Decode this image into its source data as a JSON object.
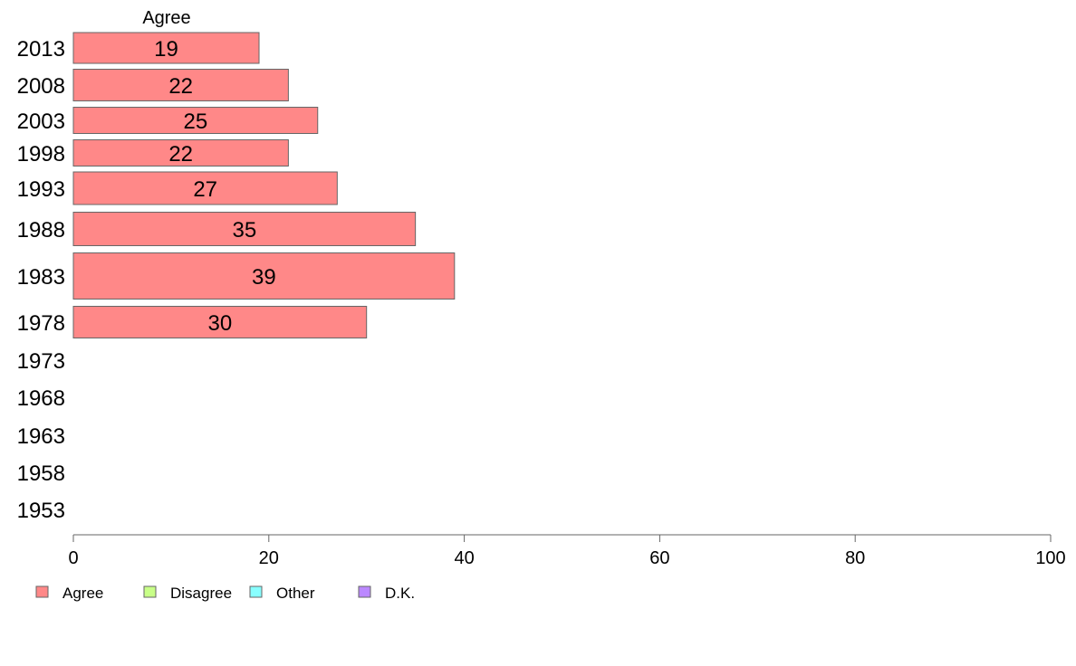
{
  "chart_data": {
    "type": "bar",
    "orientation": "horizontal",
    "series_header": "Agree",
    "categories": [
      "2013",
      "2008",
      "2003",
      "1998",
      "1993",
      "1988",
      "1983",
      "1978",
      "1973",
      "1968",
      "1963",
      "1958",
      "1953"
    ],
    "series": [
      {
        "name": "Agree",
        "color": "#ff8888",
        "values": [
          19,
          22,
          25,
          22,
          27,
          35,
          39,
          30,
          null,
          null,
          null,
          null,
          null
        ]
      }
    ],
    "xlim": [
      0,
      100
    ],
    "xticks": [
      "0",
      "20",
      "40",
      "60",
      "80",
      "100"
    ],
    "grid": false,
    "legend": {
      "placement": "bottom-left",
      "items": [
        {
          "label": "Agree",
          "color": "#ff8888"
        },
        {
          "label": "Disagree",
          "color": "#c8ff88"
        },
        {
          "label": "Other",
          "color": "#88ffff"
        },
        {
          "label": "D.K.",
          "color": "#bb88ff"
        }
      ]
    }
  }
}
